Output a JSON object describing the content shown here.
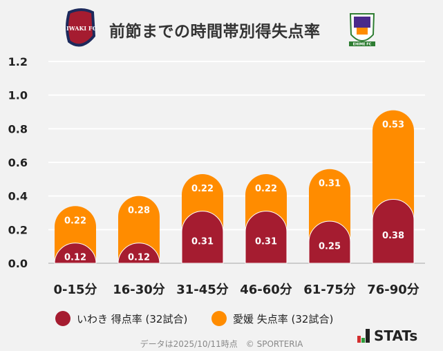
{
  "header": {
    "title": "前節までの時間帯別得失点率",
    "home_logo_text": "IWAKI FC",
    "away_logo_text": "EHIME FC"
  },
  "colors": {
    "home": "#a51c30",
    "away": "#ff8c00",
    "grid": "#ffffff",
    "axis_text": "#222222"
  },
  "chart_data": {
    "type": "bar",
    "stacked": true,
    "categories": [
      "0-15分",
      "16-30分",
      "31-45分",
      "46-60分",
      "61-75分",
      "76-90分"
    ],
    "series": [
      {
        "name": "いわき 得点率 (32試合)",
        "values": [
          0.12,
          0.12,
          0.31,
          0.31,
          0.25,
          0.38
        ]
      },
      {
        "name": "愛媛 失点率 (32試合)",
        "values": [
          0.22,
          0.28,
          0.22,
          0.22,
          0.31,
          0.53
        ]
      }
    ],
    "yticks": [
      "0.0",
      "0.2",
      "0.4",
      "0.6",
      "0.8",
      "1.0",
      "1.2"
    ],
    "ylim": [
      0,
      1.2
    ],
    "grid": true,
    "legend": "bottom"
  },
  "footer": {
    "note": "データは2025/10/11時点　© SPORTERIA",
    "brand": "STATs"
  }
}
